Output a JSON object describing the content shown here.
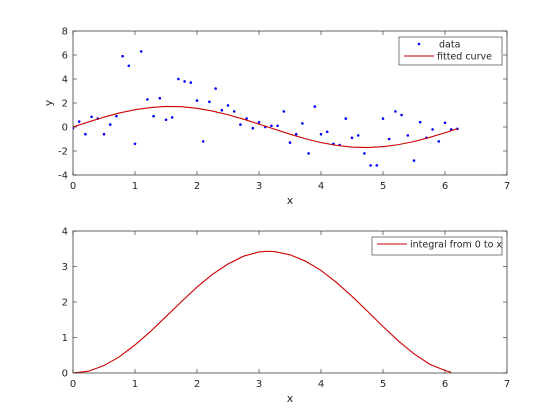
{
  "chart_data": [
    {
      "type": "scatter",
      "xlabel": "x",
      "ylabel": "y",
      "xlim": [
        0,
        7
      ],
      "ylim": [
        -4,
        8
      ],
      "xticks": [
        "0",
        "1",
        "2",
        "3",
        "4",
        "5",
        "6",
        "7"
      ],
      "yticks": [
        "-4",
        "-2",
        "0",
        "2",
        "4",
        "6",
        "8"
      ],
      "grid": false,
      "legend_position": "top-right",
      "series": [
        {
          "name": "data",
          "style": "points",
          "color": "#0000ff",
          "x": [
            0.0,
            0.1,
            0.2,
            0.3,
            0.4,
            0.5,
            0.6,
            0.7,
            0.8,
            0.9,
            1.0,
            1.1,
            1.2,
            1.3,
            1.4,
            1.5,
            1.6,
            1.7,
            1.8,
            1.9,
            2.0,
            2.1,
            2.2,
            2.3,
            2.4,
            2.5,
            2.6,
            2.7,
            2.8,
            2.9,
            3.0,
            3.1,
            3.2,
            3.3,
            3.4,
            3.5,
            3.6,
            3.7,
            3.8,
            3.9,
            4.0,
            4.1,
            4.2,
            4.3,
            4.4,
            4.5,
            4.6,
            4.7,
            4.8,
            4.9,
            5.0,
            5.1,
            5.2,
            5.3,
            5.4,
            5.5,
            5.6,
            5.7,
            5.8,
            5.9,
            6.0,
            6.1,
            6.2
          ],
          "y": [
            -0.1,
            0.45,
            -0.6,
            0.85,
            0.7,
            -0.6,
            0.2,
            0.9,
            5.9,
            5.1,
            -1.4,
            6.3,
            2.3,
            0.9,
            2.4,
            0.6,
            0.8,
            4.0,
            3.8,
            3.7,
            2.2,
            -1.2,
            2.1,
            3.2,
            1.4,
            1.8,
            1.3,
            0.2,
            0.7,
            -0.1,
            0.4,
            0.0,
            0.1,
            0.1,
            1.3,
            -1.3,
            -0.6,
            0.3,
            -2.2,
            1.7,
            -0.6,
            -0.4,
            -1.4,
            -1.5,
            0.7,
            -0.9,
            -0.7,
            -2.2,
            -3.2,
            -3.2,
            0.7,
            -1.0,
            1.3,
            1.0,
            -0.7,
            -2.8,
            0.4,
            -0.9,
            -0.2,
            -1.2,
            0.35,
            -0.2,
            -0.15
          ]
        },
        {
          "name": "fitted curve",
          "style": "line",
          "color": "#cc0000",
          "x": [
            0.0,
            0.25,
            0.5,
            0.75,
            1.0,
            1.25,
            1.5,
            1.75,
            2.0,
            2.25,
            2.5,
            2.75,
            3.0,
            3.25,
            3.5,
            3.75,
            4.0,
            4.25,
            4.5,
            4.75,
            5.0,
            5.25,
            5.5,
            5.75,
            6.0,
            6.2
          ],
          "y": [
            0.0,
            0.42,
            0.82,
            1.17,
            1.44,
            1.62,
            1.71,
            1.69,
            1.56,
            1.33,
            1.02,
            0.65,
            0.24,
            -0.18,
            -0.6,
            -0.98,
            -1.3,
            -1.53,
            -1.67,
            -1.71,
            -1.64,
            -1.47,
            -1.21,
            -0.87,
            -0.48,
            -0.14
          ]
        }
      ]
    },
    {
      "type": "line",
      "xlabel": "x",
      "ylabel": "",
      "xlim": [
        0,
        7
      ],
      "ylim": [
        0,
        4
      ],
      "xticks": [
        "0",
        "1",
        "2",
        "3",
        "4",
        "5",
        "6",
        "7"
      ],
      "yticks": [
        "0",
        "1",
        "2",
        "3",
        "4"
      ],
      "grid": false,
      "legend_position": "top-right",
      "series": [
        {
          "name": "integral from 0 to x",
          "style": "line",
          "color": "#cc0000",
          "x": [
            0.0,
            0.25,
            0.5,
            0.75,
            1.0,
            1.25,
            1.5,
            1.75,
            2.0,
            2.25,
            2.5,
            2.75,
            3.0,
            3.14,
            3.25,
            3.5,
            3.75,
            4.0,
            4.25,
            4.5,
            4.75,
            5.0,
            5.25,
            5.5,
            5.75,
            6.0,
            6.1
          ],
          "y": [
            0.0,
            0.05,
            0.21,
            0.46,
            0.79,
            1.17,
            1.59,
            2.01,
            2.42,
            2.78,
            3.07,
            3.29,
            3.41,
            3.43,
            3.42,
            3.33,
            3.15,
            2.89,
            2.55,
            2.16,
            1.74,
            1.31,
            0.9,
            0.54,
            0.25,
            0.07,
            0.02
          ]
        }
      ]
    }
  ]
}
